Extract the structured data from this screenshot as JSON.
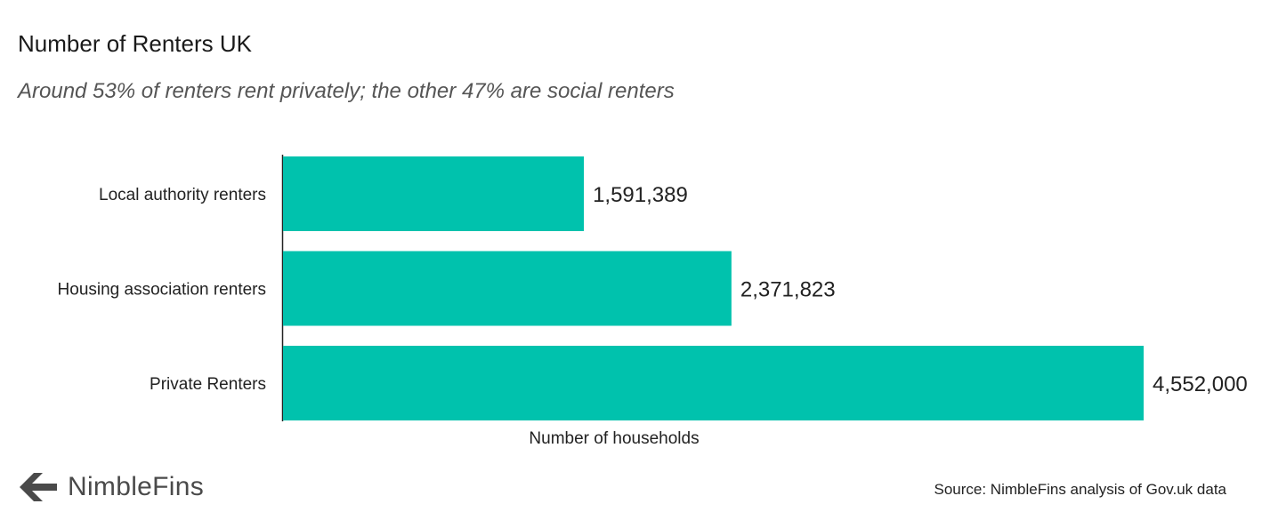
{
  "header": {
    "title": "Number of Renters UK",
    "subtitle": "Around 53% of renters rent privately; the other 47% are social renters"
  },
  "chart_data": {
    "type": "bar",
    "orientation": "horizontal",
    "categories": [
      "Local authority renters",
      "Housing association renters",
      "Private Renters"
    ],
    "values": [
      1591389,
      2371823,
      4552000
    ],
    "value_labels": [
      "1,591,389",
      "2,371,823",
      "4,552,000"
    ],
    "xlabel": "Number of households",
    "xlim": [
      0,
      4552000
    ],
    "grid": false,
    "bar_color": "#00c2ad"
  },
  "footer": {
    "brand": "NimbleFins",
    "source": "Source: NimbleFins analysis of Gov.uk data"
  }
}
